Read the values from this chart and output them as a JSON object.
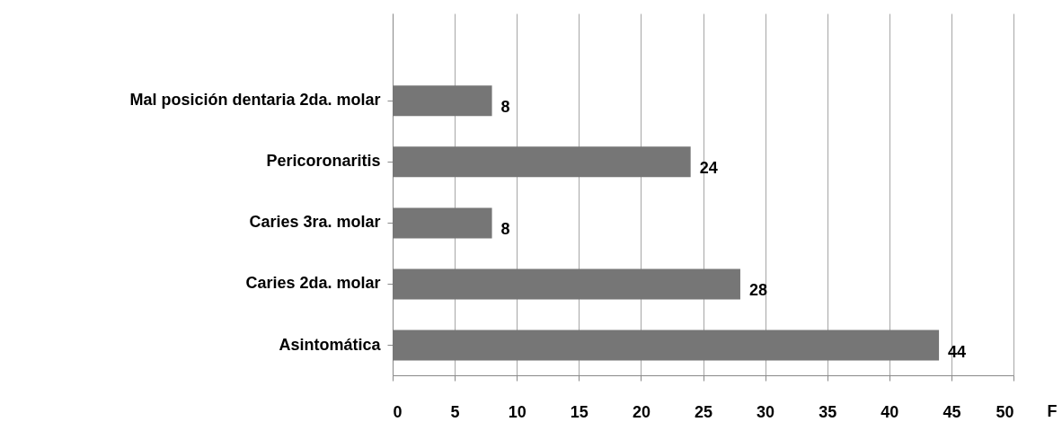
{
  "chart_data": {
    "type": "bar",
    "orientation": "horizontal",
    "categories": [
      "Mal posición dentaria 2da. molar",
      "Pericoronaritis",
      "Caries 3ra. molar",
      "Caries 2da. molar",
      "Asintomática"
    ],
    "values": [
      8,
      24,
      8,
      28,
      44
    ],
    "color": "#767676",
    "xlabel": "F",
    "xlim": [
      0,
      50
    ],
    "xticks": [
      0,
      5,
      10,
      15,
      20,
      25,
      30,
      35,
      40,
      45,
      50
    ],
    "grid": "x",
    "data_labels": true
  }
}
